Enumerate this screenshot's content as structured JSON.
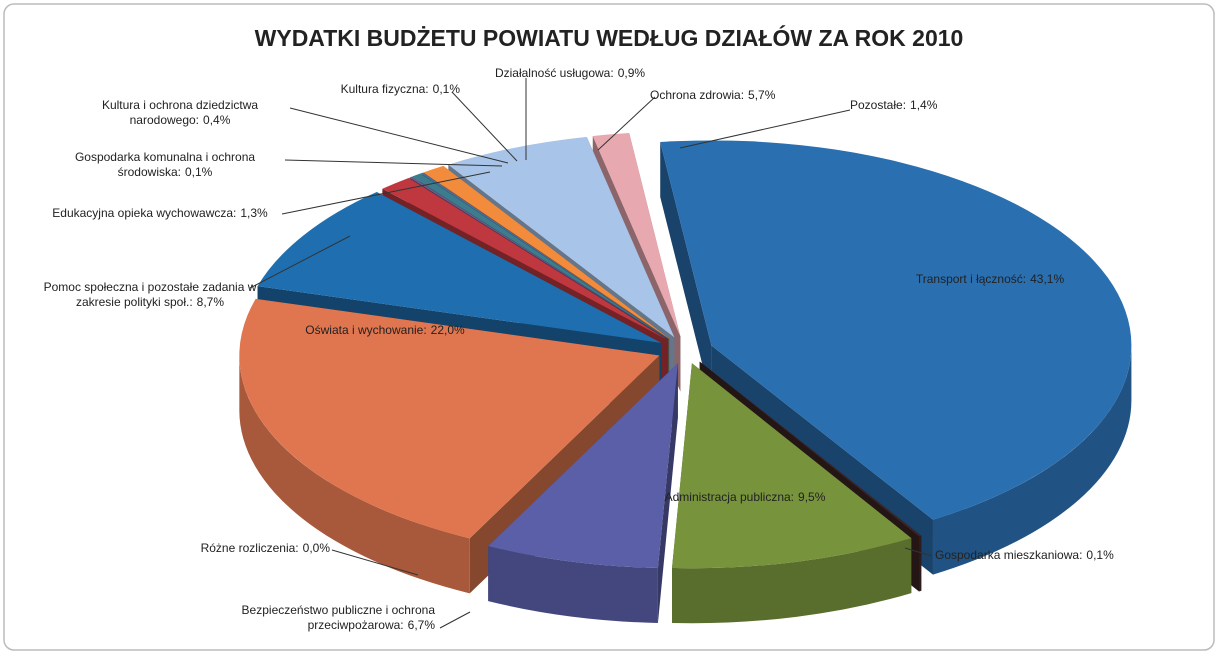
{
  "chart_data": {
    "type": "pie3d",
    "title": "WYDATKI BUDŻETU POWIATU WEDŁUG DZIAŁÓW ZA ROK 2010",
    "categories": [
      "Transport i łączność:",
      "Gospodarka mieszkaniowa:",
      "Administracja publiczna:",
      "Bezpieczeństwo publiczne i ochrona przeciwpożarowa:",
      "Różne rozliczenia:",
      "Oświata i wychowanie:",
      "Pomoc społeczna i pozostałe zadania w zakresie polityki społ.:",
      "Edukacyjna opieka wychowawcza:",
      "Gospodarka komunalna i ochrona środowiska:",
      "Kultura i ochrona dziedzictwa narodowego:",
      "Kultura fizyczna:",
      "Działalność usługowa:",
      "Ochrona zdrowia:",
      "Pozostałe:"
    ],
    "values": [
      43.1,
      0.1,
      9.5,
      6.7,
      0.0,
      22.0,
      8.7,
      1.3,
      0.1,
      0.4,
      0.1,
      0.9,
      5.7,
      1.4
    ],
    "value_labels": [
      "43,1%",
      "0,1%",
      "9,5%",
      "6,7%",
      "0,0%",
      "22,0%",
      "8,7%",
      "1,3%",
      "0,1%",
      "0,4%",
      "0,1%",
      "0,9%",
      "5,7%",
      "1,4%"
    ],
    "colors": [
      "#2a6fb0",
      "#3d2424",
      "#77933c",
      "#5b5fa8",
      "#1f7f8c",
      "#e0764f",
      "#1f6fb0",
      "#c0383f",
      "#6d5a8a",
      "#3c7c8c",
      "#4a6fa0",
      "#f28c3c",
      "#a8c4e8",
      "#e8a8b0"
    ]
  }
}
